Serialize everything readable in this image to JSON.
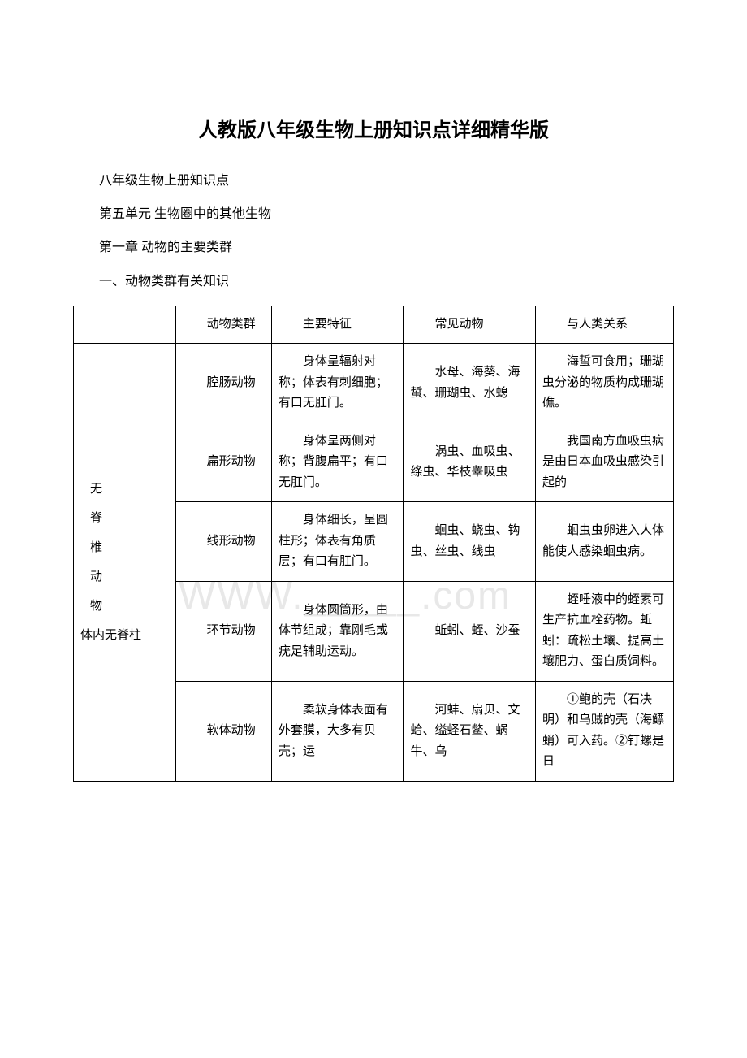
{
  "title": "人教版八年级生物上册知识点详细精华版",
  "intro": {
    "line1": "八年级生物上册知识点",
    "line2": "第五单元 生物圈中的其他生物",
    "line3": "第一章 动物的主要类群",
    "line4": "一、动物类群有关知识"
  },
  "watermark": "WWW._____.com",
  "table": {
    "headers": {
      "col1": "",
      "col2": "动物类群",
      "col3": "主要特征",
      "col4": "常见动物",
      "col5": "与人类关系"
    },
    "category": {
      "line1": "无",
      "line2": "脊",
      "line3": "椎",
      "line4": "动",
      "line5": "物",
      "note": "体内无脊柱"
    },
    "rows": [
      {
        "group": "腔肠动物",
        "feature": "身体呈辐射对称；体表有刺细胞；有口无肛门。",
        "animals": "水母、海葵、海蜇、珊瑚虫、水螅",
        "relation": "海蜇可食用；珊瑚虫分泌的物质构成珊瑚礁。"
      },
      {
        "group": "扁形动物",
        "feature": "身体呈两侧对称；背腹扁平；有口无肛门。",
        "animals": "涡虫、血吸虫、绦虫、华枝睾吸虫",
        "relation": "我国南方血吸虫病是由日本血吸虫感染引起的"
      },
      {
        "group": "线形动物",
        "feature": "身体细长，呈圆柱形；体表有角质层；有口有肛门。",
        "animals": "蛔虫、蛲虫、钩虫、丝虫、线虫",
        "relation": "蛔虫虫卵进入人体能使人感染蛔虫病。"
      },
      {
        "group": "环节动物",
        "feature": "身体圆筒形，由体节组成；靠刚毛或疣足辅助运动。",
        "animals": "蚯蚓、蛭、沙蚕",
        "relation": "蛭唾液中的蛭素可生产抗血栓药物。蚯蚓：疏松土壤、提高土壤肥力、蛋白质饲料。"
      },
      {
        "group": "软体动物",
        "feature": "柔软身体表面有外套膜，大多有贝壳；运",
        "animals": "河蚌、扇贝、文蛤、缢蛏石鳖、蜗牛、乌",
        "relation": "①鲍的壳（石决明）和乌贼的壳（海鳔蛸）可入药。②钉螺是日"
      }
    ]
  }
}
